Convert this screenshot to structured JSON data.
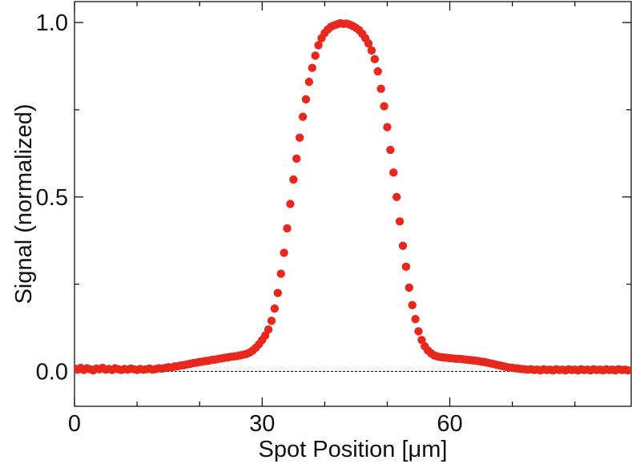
{
  "chart_data": {
    "type": "scatter",
    "title": "",
    "xlabel": "Spot Position [μm]",
    "ylabel": "Signal (normalized)",
    "xlim": [
      0,
      89
    ],
    "ylim": [
      -0.1,
      1.06
    ],
    "xticks": [
      0,
      30,
      60
    ],
    "xtick_labels": [
      "0",
      "30",
      "60"
    ],
    "xminor_ticks": [
      10,
      20,
      40,
      50,
      70,
      80
    ],
    "yticks": [
      0.0,
      0.5,
      1.0
    ],
    "ytick_labels": [
      "0.0",
      "0.5",
      "1.0"
    ],
    "yminor_ticks": [
      0.25,
      0.75
    ],
    "grid": false,
    "legend": "none",
    "reference_line": {
      "y": 0.0,
      "style": "dashed",
      "color": "#000000"
    },
    "marker_color": "#e8271d",
    "series": [
      {
        "points": [
          [
            0.0,
            0.008
          ],
          [
            0.5,
            0.005
          ],
          [
            1.0,
            0.01
          ],
          [
            1.5,
            0.004
          ],
          [
            2.0,
            0.009
          ],
          [
            2.5,
            0.006
          ],
          [
            3.0,
            0.003
          ],
          [
            3.5,
            0.008
          ],
          [
            4.0,
            0.006
          ],
          [
            4.5,
            0.01
          ],
          [
            5.0,
            0.005
          ],
          [
            5.5,
            0.007
          ],
          [
            6.0,
            0.004
          ],
          [
            6.5,
            0.009
          ],
          [
            7.0,
            0.006
          ],
          [
            7.5,
            0.004
          ],
          [
            8.0,
            0.007
          ],
          [
            8.5,
            0.005
          ],
          [
            9.0,
            0.008
          ],
          [
            9.5,
            0.006
          ],
          [
            10.0,
            0.004
          ],
          [
            10.5,
            0.007
          ],
          [
            11.0,
            0.005
          ],
          [
            11.5,
            0.006
          ],
          [
            12.0,
            0.008
          ],
          [
            12.5,
            0.005
          ],
          [
            13.0,
            0.007
          ],
          [
            13.5,
            0.009
          ],
          [
            14.0,
            0.008
          ],
          [
            14.5,
            0.01
          ],
          [
            15.0,
            0.012
          ],
          [
            15.5,
            0.011
          ],
          [
            16.0,
            0.014
          ],
          [
            16.5,
            0.015
          ],
          [
            17.0,
            0.017
          ],
          [
            17.5,
            0.018
          ],
          [
            18.0,
            0.02
          ],
          [
            18.5,
            0.022
          ],
          [
            19.0,
            0.024
          ],
          [
            19.5,
            0.025
          ],
          [
            20.0,
            0.027
          ],
          [
            20.5,
            0.028
          ],
          [
            21.0,
            0.03
          ],
          [
            21.5,
            0.031
          ],
          [
            22.0,
            0.033
          ],
          [
            22.5,
            0.034
          ],
          [
            23.0,
            0.036
          ],
          [
            23.5,
            0.037
          ],
          [
            24.0,
            0.039
          ],
          [
            24.5,
            0.04
          ],
          [
            25.0,
            0.042
          ],
          [
            25.5,
            0.043
          ],
          [
            26.0,
            0.044
          ],
          [
            26.5,
            0.046
          ],
          [
            27.0,
            0.048
          ],
          [
            27.5,
            0.05
          ],
          [
            28.0,
            0.054
          ],
          [
            28.5,
            0.06
          ],
          [
            29.0,
            0.068
          ],
          [
            29.5,
            0.078
          ],
          [
            30.0,
            0.09
          ],
          [
            30.5,
            0.103
          ],
          [
            31.0,
            0.12
          ],
          [
            31.5,
            0.145
          ],
          [
            32.0,
            0.18
          ],
          [
            32.5,
            0.225
          ],
          [
            33.0,
            0.28
          ],
          [
            33.5,
            0.34
          ],
          [
            34.0,
            0.41
          ],
          [
            34.5,
            0.48
          ],
          [
            35.0,
            0.55
          ],
          [
            35.5,
            0.61
          ],
          [
            36.0,
            0.67
          ],
          [
            36.5,
            0.73
          ],
          [
            37.0,
            0.78
          ],
          [
            37.5,
            0.83
          ],
          [
            38.0,
            0.87
          ],
          [
            38.5,
            0.905
          ],
          [
            39.0,
            0.935
          ],
          [
            39.5,
            0.955
          ],
          [
            40.0,
            0.97
          ],
          [
            40.5,
            0.98
          ],
          [
            41.0,
            0.988
          ],
          [
            41.5,
            0.992
          ],
          [
            42.0,
            0.995
          ],
          [
            42.5,
            0.998
          ],
          [
            43.0,
            0.996
          ],
          [
            43.5,
            0.997
          ],
          [
            44.0,
            0.994
          ],
          [
            44.5,
            0.99
          ],
          [
            45.0,
            0.985
          ],
          [
            45.5,
            0.978
          ],
          [
            46.0,
            0.968
          ],
          [
            46.5,
            0.955
          ],
          [
            47.0,
            0.94
          ],
          [
            47.5,
            0.92
          ],
          [
            48.0,
            0.895
          ],
          [
            48.5,
            0.86
          ],
          [
            49.0,
            0.81
          ],
          [
            49.5,
            0.76
          ],
          [
            50.0,
            0.7
          ],
          [
            50.5,
            0.635
          ],
          [
            51.0,
            0.57
          ],
          [
            51.5,
            0.5
          ],
          [
            52.0,
            0.43
          ],
          [
            52.5,
            0.36
          ],
          [
            53.0,
            0.3
          ],
          [
            53.5,
            0.24
          ],
          [
            54.0,
            0.19
          ],
          [
            54.5,
            0.15
          ],
          [
            55.0,
            0.115
          ],
          [
            55.5,
            0.09
          ],
          [
            56.0,
            0.072
          ],
          [
            56.5,
            0.06
          ],
          [
            57.0,
            0.052
          ],
          [
            57.5,
            0.046
          ],
          [
            58.0,
            0.043
          ],
          [
            58.5,
            0.041
          ],
          [
            59.0,
            0.04
          ],
          [
            59.5,
            0.039
          ],
          [
            60.0,
            0.038
          ],
          [
            60.5,
            0.037
          ],
          [
            61.0,
            0.036
          ],
          [
            61.5,
            0.036
          ],
          [
            62.0,
            0.035
          ],
          [
            62.5,
            0.034
          ],
          [
            63.0,
            0.033
          ],
          [
            63.5,
            0.032
          ],
          [
            64.0,
            0.031
          ],
          [
            64.5,
            0.03
          ],
          [
            65.0,
            0.028
          ],
          [
            65.5,
            0.027
          ],
          [
            66.0,
            0.025
          ],
          [
            66.5,
            0.023
          ],
          [
            67.0,
            0.021
          ],
          [
            67.5,
            0.019
          ],
          [
            68.0,
            0.017
          ],
          [
            68.5,
            0.015
          ],
          [
            69.0,
            0.013
          ],
          [
            69.5,
            0.011
          ],
          [
            70.0,
            0.01
          ],
          [
            70.5,
            0.009
          ],
          [
            71.0,
            0.008
          ],
          [
            71.5,
            0.007
          ],
          [
            72.0,
            0.006
          ],
          [
            72.5,
            0.005
          ],
          [
            73.0,
            0.006
          ],
          [
            73.5,
            0.004
          ],
          [
            74.0,
            0.005
          ],
          [
            74.5,
            0.003
          ],
          [
            75.0,
            0.006
          ],
          [
            75.5,
            0.004
          ],
          [
            76.0,
            0.005
          ],
          [
            76.5,
            0.003
          ],
          [
            77.0,
            0.006
          ],
          [
            77.5,
            0.004
          ],
          [
            78.0,
            0.005
          ],
          [
            78.5,
            0.003
          ],
          [
            79.0,
            0.006
          ],
          [
            79.5,
            0.004
          ],
          [
            80.0,
            0.005
          ],
          [
            80.5,
            0.003
          ],
          [
            81.0,
            0.006
          ],
          [
            81.5,
            0.004
          ],
          [
            82.0,
            0.005
          ],
          [
            82.5,
            0.003
          ],
          [
            83.0,
            0.006
          ],
          [
            83.5,
            0.004
          ],
          [
            84.0,
            0.005
          ],
          [
            84.5,
            0.003
          ],
          [
            85.0,
            0.006
          ],
          [
            85.5,
            0.004
          ],
          [
            86.0,
            0.005
          ],
          [
            86.5,
            0.003
          ],
          [
            87.0,
            0.006
          ],
          [
            87.5,
            0.004
          ],
          [
            88.0,
            0.005
          ],
          [
            88.5,
            0.003
          ]
        ]
      }
    ]
  }
}
